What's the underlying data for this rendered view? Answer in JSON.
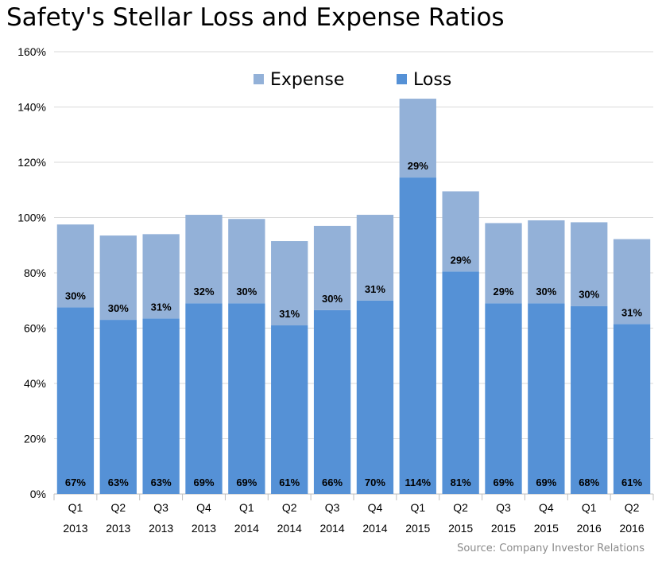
{
  "title": "Safety's Stellar Loss and Expense Ratios",
  "source": "Source: Company Investor Relations",
  "colors": {
    "loss": "#5591d6",
    "expense": "#93b1d8",
    "grid": "#d9d9d9",
    "axis": "#bfbfbf"
  },
  "chart_data": {
    "type": "bar",
    "stacked": true,
    "categories": [
      [
        "Q1",
        "2013"
      ],
      [
        "Q2",
        "2013"
      ],
      [
        "Q3",
        "2013"
      ],
      [
        "Q4",
        "2013"
      ],
      [
        "Q1",
        "2014"
      ],
      [
        "Q2",
        "2014"
      ],
      [
        "Q3",
        "2014"
      ],
      [
        "Q4",
        "2014"
      ],
      [
        "Q1",
        "2015"
      ],
      [
        "Q2",
        "2015"
      ],
      [
        "Q3",
        "2015"
      ],
      [
        "Q4",
        "2015"
      ],
      [
        "Q1",
        "2016"
      ],
      [
        "Q2",
        "2016"
      ]
    ],
    "series": [
      {
        "name": "Loss",
        "values": [
          67.5,
          63,
          63.5,
          69,
          69,
          61,
          66.5,
          70,
          114.5,
          80.5,
          69,
          69,
          68,
          61.5
        ],
        "labels": [
          "67%",
          "63%",
          "63%",
          "69%",
          "69%",
          "61%",
          "66%",
          "70%",
          "114%",
          "81%",
          "69%",
          "69%",
          "68%",
          "61%"
        ]
      },
      {
        "name": "Expense",
        "values": [
          30,
          30.5,
          30.5,
          32,
          30.5,
          30.5,
          30.5,
          31,
          28.5,
          29,
          29,
          30,
          30.3,
          30.7
        ],
        "labels": [
          "30%",
          "30%",
          "31%",
          "32%",
          "30%",
          "31%",
          "30%",
          "31%",
          "29%",
          "29%",
          "29%",
          "30%",
          "30%",
          "31%"
        ]
      }
    ],
    "ylim": [
      0,
      160
    ],
    "yticks": [
      "0%",
      "20%",
      "40%",
      "60%",
      "80%",
      "100%",
      "120%",
      "140%",
      "160%"
    ],
    "grid": true,
    "legend": {
      "position": "top-center",
      "order": [
        "Expense",
        "Loss"
      ]
    }
  }
}
